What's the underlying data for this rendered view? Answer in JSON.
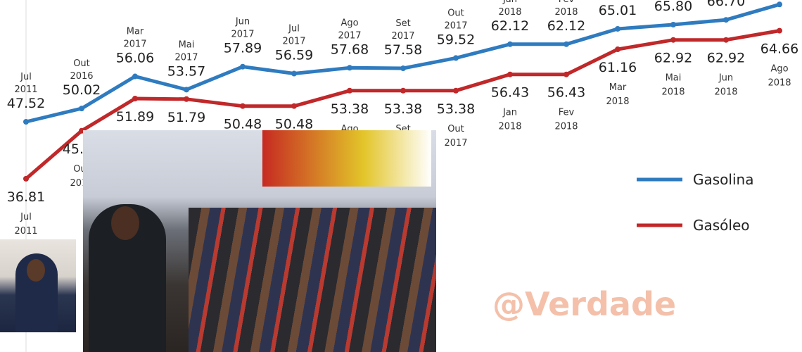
{
  "chart_data": {
    "type": "line",
    "categories": [
      [
        "Jul",
        "2011"
      ],
      [
        "Out",
        "2016"
      ],
      [
        "Mar",
        "2017"
      ],
      [
        "Mai",
        "2017"
      ],
      [
        "Jun",
        "2017"
      ],
      [
        "Jul",
        "2017"
      ],
      [
        "Ago",
        "2017"
      ],
      [
        "Set",
        "2017"
      ],
      [
        "Out",
        "2017"
      ],
      [
        "Jan",
        "2018"
      ],
      [
        "Fev",
        "2018"
      ],
      [
        "Mar",
        "2018"
      ],
      [
        "Mai",
        "2018"
      ],
      [
        "Jun",
        "2018"
      ],
      [
        "Ago",
        "2018"
      ]
    ],
    "series": [
      {
        "name": "Gasolina",
        "color": "#2f7bbf",
        "values": [
          47.52,
          50.02,
          56.06,
          53.57,
          57.89,
          56.59,
          57.68,
          57.58,
          59.52,
          62.12,
          62.12,
          65.01,
          65.8,
          66.7,
          69.6
        ]
      },
      {
        "name": "Gasóleo",
        "color": "#c0282a",
        "values": [
          36.81,
          45.83,
          51.89,
          51.79,
          50.48,
          50.48,
          53.38,
          53.38,
          53.38,
          56.43,
          56.43,
          61.16,
          62.92,
          62.92,
          64.66
        ]
      }
    ],
    "legend": "right",
    "grid": false
  },
  "watermark": "@Verdade"
}
